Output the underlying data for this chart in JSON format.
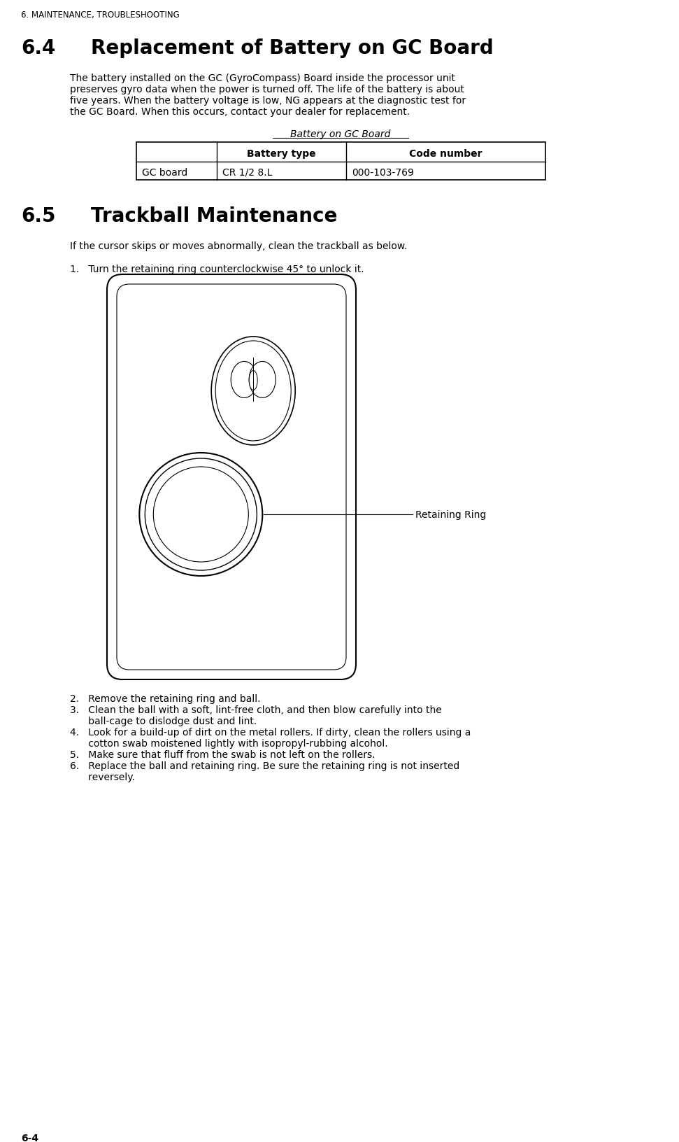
{
  "bg_color": "#ffffff",
  "header_text": "6. MAINTENANCE, TROUBLESHOOTING",
  "section_64_num": "6.4",
  "section_64_title": "Replacement of Battery on GC Board",
  "body_64_lines": [
    "The battery installed on the GC (GyroCompass) Board inside the processor unit",
    "preserves gyro data when the power is turned off. The life of the battery is about",
    "five years. When the battery voltage is low, NG appears at the diagnostic test for",
    "the GC Board. When this occurs, contact your dealer for replacement."
  ],
  "table_title": "Battery on GC Board",
  "table_headers": [
    "",
    "Battery type",
    "Code number"
  ],
  "table_row": [
    "GC board",
    "CR 1/2 8.L",
    "000-103-769"
  ],
  "section_65_num": "6.5",
  "section_65_title": "Trackball Maintenance",
  "body_65": "If the cursor skips or moves abnormally, clean the trackball as below.",
  "step1": "1.   Turn the retaining ring counterclockwise 45° to unlock it.",
  "retaining_ring_label": "Retaining Ring",
  "step_lines": [
    "2.   Remove the retaining ring and ball.",
    "3.   Clean the ball with a soft, lint-free cloth, and then blow carefully into the",
    "      ball-cage to dislodge dust and lint.",
    "4.   Look for a build-up of dirt on the metal rollers. If dirty, clean the rollers using a",
    "      cotton swab moistened lightly with isopropyl-rubbing alcohol.",
    "5.   Make sure that fluff from the swab is not left on the rollers.",
    "6.   Replace the ball and retaining ring. Be sure the retaining ring is not inserted",
    "      reversely."
  ],
  "footer_text": "6-4",
  "text_color": "#000000",
  "header_font_size": 8.5,
  "section_num_font_size": 20,
  "section_title_font_size": 20,
  "body_font_size": 10,
  "step_font_size": 10,
  "table_header_font_size": 10,
  "table_cell_font_size": 10,
  "table_title_font_size": 10
}
